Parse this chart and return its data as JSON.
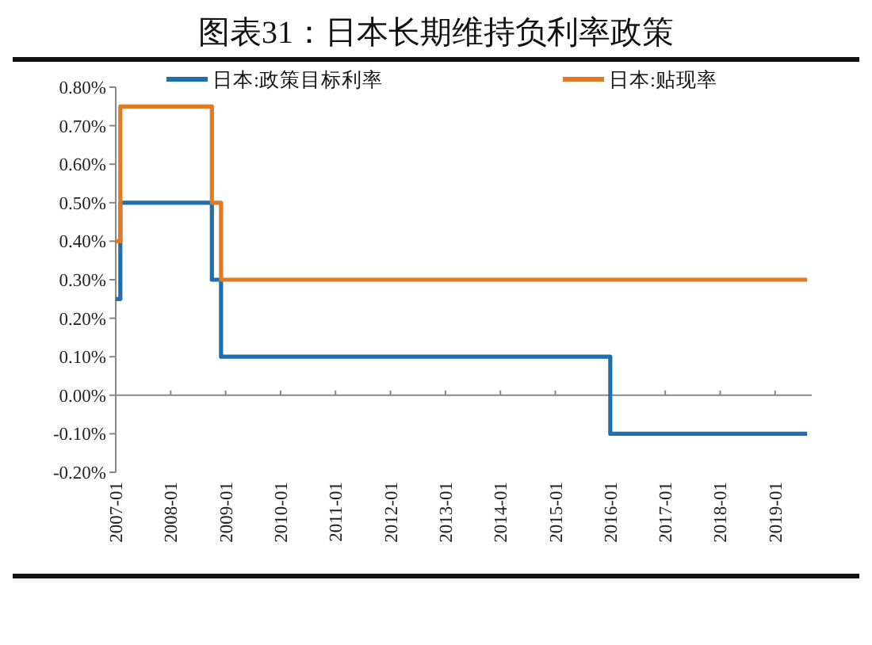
{
  "chart_data": {
    "type": "step",
    "title": "图表31：日本长期维持负利率政策",
    "xlim": [
      "2007-01",
      "2019-09"
    ],
    "xticks": [
      {
        "value": "2007-01",
        "label": "2007-01"
      },
      {
        "value": "2008-01",
        "label": "2008-01"
      },
      {
        "value": "2009-01",
        "label": "2009-01"
      },
      {
        "value": "2010-01",
        "label": "2010-01"
      },
      {
        "value": "2011-01",
        "label": "2011-01"
      },
      {
        "value": "2012-01",
        "label": "2012-01"
      },
      {
        "value": "2013-01",
        "label": "2013-01"
      },
      {
        "value": "2014-01",
        "label": "2014-01"
      },
      {
        "value": "2015-01",
        "label": "2015-01"
      },
      {
        "value": "2016-01",
        "label": "2016-01"
      },
      {
        "value": "2017-01",
        "label": "2017-01"
      },
      {
        "value": "2018-01",
        "label": "2018-01"
      },
      {
        "value": "2019-01",
        "label": "2019-01"
      }
    ],
    "ylim": [
      -0.2,
      0.8
    ],
    "yticks": [
      {
        "value": -0.2,
        "label": "-0.20%"
      },
      {
        "value": -0.1,
        "label": "-0.10%"
      },
      {
        "value": 0,
        "label": "0.00%"
      },
      {
        "value": 0.1,
        "label": "0.10%"
      },
      {
        "value": 0.2,
        "label": "0.20%"
      },
      {
        "value": 0.3,
        "label": "0.30%"
      },
      {
        "value": 0.4,
        "label": "0.40%"
      },
      {
        "value": 0.5,
        "label": "0.50%"
      },
      {
        "value": 0.6,
        "label": "0.60%"
      },
      {
        "value": 0.7,
        "label": "0.70%"
      },
      {
        "value": 0.8,
        "label": "0.80%"
      }
    ],
    "legend": "top",
    "marker": "none",
    "line_style": "solid",
    "series": [
      {
        "name": "日本:政策目标利率",
        "color": "#1f6fb0",
        "x": [
          "2007-01",
          "2007-02",
          "2008-10",
          "2008-12",
          "2016-01",
          "2019-08"
        ],
        "values": [
          0.25,
          0.5,
          0.3,
          0.1,
          -0.1,
          -0.1
        ]
      },
      {
        "name": "日本:贴现率",
        "color": "#e07b22",
        "x": [
          "2007-01",
          "2007-02",
          "2008-10",
          "2008-12",
          "2019-08"
        ],
        "values": [
          0.4,
          0.75,
          0.5,
          0.3,
          0.3
        ]
      }
    ]
  }
}
